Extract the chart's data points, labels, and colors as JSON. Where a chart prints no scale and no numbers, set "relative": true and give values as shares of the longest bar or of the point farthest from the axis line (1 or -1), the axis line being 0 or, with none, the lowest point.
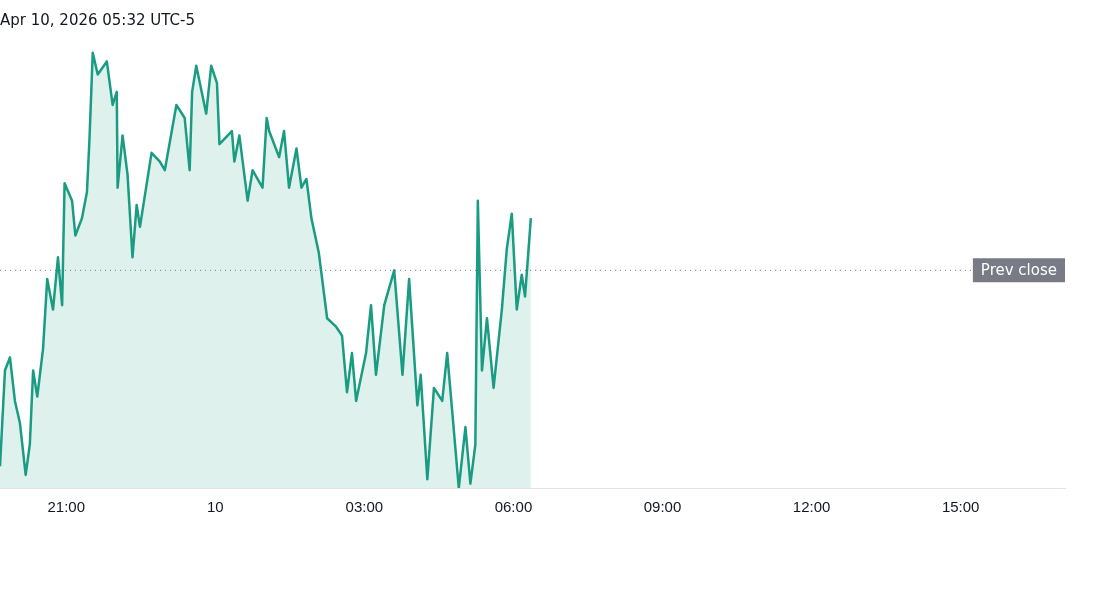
{
  "chart_data": {
    "type": "area",
    "title": "Apr 10, 2026 05:32 UTC-5",
    "relative": true,
    "xlim": [
      "2026-04-09T19:40",
      "2026-04-10T17:06"
    ],
    "xticks": [
      {
        "value": "2026-04-09T21:00",
        "label": "21:00"
      },
      {
        "value": "2026-04-10T00:00",
        "label": "10"
      },
      {
        "value": "2026-04-10T03:00",
        "label": "03:00"
      },
      {
        "value": "2026-04-10T06:00",
        "label": "06:00"
      },
      {
        "value": "2026-04-10T09:00",
        "label": "09:00"
      },
      {
        "value": "2026-04-10T12:00",
        "label": "12:00"
      },
      {
        "value": "2026-04-10T15:00",
        "label": "15:00"
      }
    ],
    "ref_lines": [
      {
        "axis": "y",
        "value": 0.5,
        "label": "Prev close",
        "color": "#787b86",
        "line_style": "dotted"
      }
    ],
    "series": [
      {
        "color": "#1a9c83",
        "x": [
          "2026-04-09T19:40",
          "2026-04-09T19:46",
          "2026-04-09T19:52",
          "2026-04-09T19:58",
          "2026-04-09T20:04",
          "2026-04-09T20:11",
          "2026-04-09T20:16",
          "2026-04-09T20:20",
          "2026-04-09T20:25",
          "2026-04-09T20:32",
          "2026-04-09T20:37",
          "2026-04-09T20:44",
          "2026-04-09T20:50",
          "2026-04-09T20:55",
          "2026-04-09T20:58",
          "2026-04-09T21:07",
          "2026-04-09T21:11",
          "2026-04-09T21:19",
          "2026-04-09T21:25",
          "2026-04-09T21:28",
          "2026-04-09T21:32",
          "2026-04-09T21:38",
          "2026-04-09T21:49",
          "2026-04-09T21:56",
          "2026-04-09T22:01",
          "2026-04-09T22:02",
          "2026-04-09T22:08",
          "2026-04-09T22:14",
          "2026-04-09T22:20",
          "2026-04-09T22:25",
          "2026-04-09T22:29",
          "2026-04-09T22:43",
          "2026-04-09T22:53",
          "2026-04-09T22:59",
          "2026-04-09T23:13",
          "2026-04-09T23:23",
          "2026-04-09T23:29",
          "2026-04-09T23:32",
          "2026-04-09T23:37",
          "2026-04-09T23:49",
          "2026-04-09T23:55",
          "2026-04-10T00:02",
          "2026-04-10T00:05",
          "2026-04-10T00:20",
          "2026-04-10T00:23",
          "2026-04-10T00:29",
          "2026-04-10T00:39",
          "2026-04-10T00:45",
          "2026-04-10T00:57",
          "2026-04-10T01:02",
          "2026-04-10T01:05",
          "2026-04-10T01:17",
          "2026-04-10T01:23",
          "2026-04-10T01:29",
          "2026-04-10T01:38",
          "2026-04-10T01:44",
          "2026-04-10T01:50",
          "2026-04-10T01:56",
          "2026-04-10T02:05",
          "2026-04-10T02:15",
          "2026-04-10T02:26",
          "2026-04-10T02:33",
          "2026-04-10T02:39",
          "2026-04-10T02:45",
          "2026-04-10T02:50",
          "2026-04-10T03:02",
          "2026-04-10T03:08",
          "2026-04-10T03:14",
          "2026-04-10T03:24",
          "2026-04-10T03:36",
          "2026-04-10T03:46",
          "2026-04-10T03:54",
          "2026-04-10T04:04",
          "2026-04-10T04:08",
          "2026-04-10T04:16",
          "2026-04-10T04:24",
          "2026-04-10T04:34",
          "2026-04-10T04:40",
          "2026-04-10T04:54",
          "2026-04-10T05:02",
          "2026-04-10T05:08",
          "2026-04-10T05:14",
          "2026-04-10T05:17",
          "2026-04-10T05:22",
          "2026-04-10T05:28",
          "2026-04-10T05:36",
          "2026-04-10T05:46",
          "2026-04-10T05:52",
          "2026-04-10T05:58",
          "2026-04-10T06:04",
          "2026-04-10T06:10",
          "2026-04-10T06:14",
          "2026-04-10T06:21"
        ],
        "values": [
          0.05,
          0.27,
          0.3,
          0.2,
          0.15,
          0.03,
          0.1,
          0.27,
          0.21,
          0.32,
          0.48,
          0.41,
          0.53,
          0.42,
          0.7,
          0.66,
          0.58,
          0.62,
          0.68,
          0.8,
          1,
          0.95,
          0.98,
          0.88,
          0.91,
          0.69,
          0.81,
          0.72,
          0.53,
          0.65,
          0.6,
          0.77,
          0.75,
          0.73,
          0.88,
          0.85,
          0.73,
          0.91,
          0.97,
          0.86,
          0.97,
          0.93,
          0.79,
          0.82,
          0.75,
          0.81,
          0.66,
          0.73,
          0.69,
          0.85,
          0.82,
          0.76,
          0.82,
          0.69,
          0.78,
          0.69,
          0.71,
          0.62,
          0.54,
          0.39,
          0.37,
          0.35,
          0.22,
          0.31,
          0.2,
          0.31,
          0.42,
          0.26,
          0.42,
          0.5,
          0.26,
          0.48,
          0.19,
          0.26,
          0.02,
          0.23,
          0.2,
          0.31,
          0,
          0.14,
          0.01,
          0.1,
          0.66,
          0.27,
          0.39,
          0.23,
          0.41,
          0.55,
          0.63,
          0.41,
          0.49,
          0.44,
          0.62
        ]
      }
    ]
  }
}
